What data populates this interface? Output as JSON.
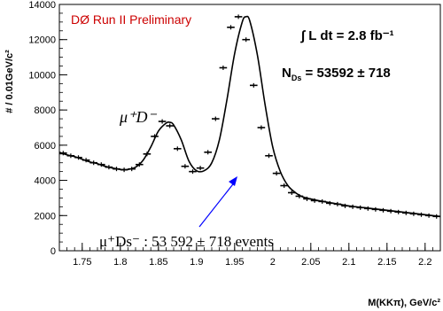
{
  "chart_data": {
    "type": "scatter",
    "title": "DØ Run II Preliminary",
    "xlabel": "M(KKπ), GeV/c²",
    "ylabel": "# / 0.01GeV/c²",
    "xlim": [
      1.72,
      2.22
    ],
    "ylim": [
      0,
      14000
    ],
    "grid": false,
    "x_ticks": [
      1.75,
      1.8,
      1.85,
      1.9,
      1.95,
      2.0,
      2.05,
      2.1,
      2.15,
      2.2
    ],
    "x_tick_labels": [
      "1.75",
      "1.8",
      "1.85",
      "1.9",
      "1.95",
      "2",
      "2.05",
      "2.1",
      "2.15",
      "2.2"
    ],
    "y_ticks": [
      0,
      2000,
      4000,
      6000,
      8000,
      10000,
      12000,
      14000
    ],
    "y_tick_labels": [
      "0",
      "2000",
      "4000",
      "6000",
      "8000",
      "10000",
      "12000",
      "14000"
    ],
    "series": [
      {
        "kind": "data-points",
        "color": "#000000",
        "x": [
          1.725,
          1.735,
          1.745,
          1.755,
          1.765,
          1.775,
          1.785,
          1.795,
          1.805,
          1.815,
          1.825,
          1.835,
          1.845,
          1.855,
          1.865,
          1.875,
          1.885,
          1.895,
          1.905,
          1.915,
          1.925,
          1.935,
          1.945,
          1.955,
          1.965,
          1.975,
          1.985,
          1.995,
          2.005,
          2.015,
          2.025,
          2.035,
          2.045,
          2.055,
          2.065,
          2.075,
          2.085,
          2.095,
          2.105,
          2.115,
          2.125,
          2.135,
          2.145,
          2.155,
          2.165,
          2.175,
          2.185,
          2.195,
          2.205,
          2.215
        ],
        "y": [
          5550,
          5400,
          5300,
          5150,
          5000,
          4900,
          4750,
          4650,
          4600,
          4650,
          4900,
          5500,
          6500,
          7350,
          7100,
          5800,
          4800,
          4500,
          4700,
          5600,
          7500,
          10400,
          12700,
          13300,
          12000,
          9400,
          7000,
          5400,
          4400,
          3700,
          3300,
          3100,
          2950,
          2850,
          2800,
          2700,
          2650,
          2550,
          2500,
          2450,
          2400,
          2350,
          2300,
          2250,
          2200,
          2150,
          2100,
          2050,
          2000,
          1950
        ]
      },
      {
        "kind": "fit-curve",
        "color": "#000000",
        "x": [
          1.72,
          1.73,
          1.74,
          1.75,
          1.76,
          1.77,
          1.78,
          1.79,
          1.8,
          1.81,
          1.82,
          1.83,
          1.84,
          1.85,
          1.86,
          1.865,
          1.87,
          1.88,
          1.89,
          1.9,
          1.91,
          1.92,
          1.93,
          1.94,
          1.95,
          1.96,
          1.965,
          1.97,
          1.98,
          1.99,
          2.0,
          2.01,
          2.02,
          2.03,
          2.04,
          2.06,
          2.08,
          2.1,
          2.12,
          2.14,
          2.16,
          2.18,
          2.2,
          2.22
        ],
        "y": [
          5600,
          5450,
          5350,
          5200,
          5050,
          4950,
          4800,
          4700,
          4620,
          4620,
          4750,
          5150,
          5900,
          6800,
          7250,
          7300,
          7150,
          6300,
          5100,
          4550,
          4550,
          5000,
          6300,
          8600,
          11200,
          13000,
          13300,
          13050,
          11100,
          8300,
          5900,
          4500,
          3700,
          3300,
          3050,
          2850,
          2700,
          2550,
          2450,
          2350,
          2250,
          2150,
          2050,
          1950
        ]
      }
    ],
    "annotations": {
      "luminosity": "∫ L dt = 2.8 fb⁻¹",
      "yield": "N = 53592 ± 718",
      "yield_subscript": "Ds",
      "peak1_label": "μ⁺D⁻",
      "peak2_label": "μ⁺Ds⁻ :  53 592 ± 718 events",
      "arrow_color": "#0000ff",
      "title_color": "#cc0000"
    }
  }
}
